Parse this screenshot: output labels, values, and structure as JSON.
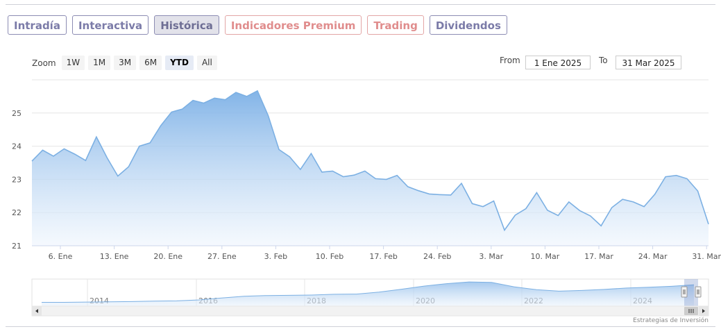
{
  "tabs": [
    {
      "label": "Intradía",
      "kind": "normal"
    },
    {
      "label": "Interactiva",
      "kind": "normal"
    },
    {
      "label": "Histórica",
      "kind": "active"
    },
    {
      "label": "Indicadores Premium",
      "kind": "premium"
    },
    {
      "label": "Trading",
      "kind": "premium"
    },
    {
      "label": "Dividendos",
      "kind": "normal"
    }
  ],
  "zoom": {
    "label": "Zoom",
    "buttons": [
      "1W",
      "1M",
      "3M",
      "6M",
      "YTD",
      "All"
    ],
    "selected": "YTD"
  },
  "range": {
    "from_label": "From",
    "from_value": "1 Ene 2025",
    "to_label": "To",
    "to_value": "31 Mar 2025"
  },
  "credit": "Estrategias de Inversión",
  "colors": {
    "line": "#7cb0e3",
    "fill_top": "#7cb0e6",
    "fill_bottom": "#eef5fd",
    "nav_fill": "#9cc3ec"
  },
  "chart_data": {
    "type": "area",
    "ylim": [
      21,
      26
    ],
    "yticks": [
      21,
      22,
      23,
      24,
      25
    ],
    "xlim": [
      "2025-01-01",
      "2025-03-31"
    ],
    "xticks": [
      {
        "date": "2025-01-06",
        "label": "6. Ene"
      },
      {
        "date": "2025-01-13",
        "label": "13. Ene"
      },
      {
        "date": "2025-01-20",
        "label": "20. Ene"
      },
      {
        "date": "2025-01-27",
        "label": "27. Ene"
      },
      {
        "date": "2025-02-03",
        "label": "3. Feb"
      },
      {
        "date": "2025-02-10",
        "label": "10. Feb"
      },
      {
        "date": "2025-02-17",
        "label": "17. Feb"
      },
      {
        "date": "2025-02-24",
        "label": "24. Feb"
      },
      {
        "date": "2025-03-03",
        "label": "3. Mar"
      },
      {
        "date": "2025-03-10",
        "label": "10. Mar"
      },
      {
        "date": "2025-03-17",
        "label": "17. Mar"
      },
      {
        "date": "2025-03-24",
        "label": "24. Mar"
      },
      {
        "date": "2025-03-31",
        "label": "31. Mar"
      }
    ],
    "points": [
      [
        "2025-01-01",
        23.55
      ],
      [
        "2025-01-02",
        23.88
      ],
      [
        "2025-01-03",
        23.7
      ],
      [
        "2025-01-04",
        23.92
      ],
      [
        "2025-01-05",
        23.76
      ],
      [
        "2025-01-06",
        23.57
      ],
      [
        "2025-01-07",
        24.28
      ],
      [
        "2025-01-08",
        23.65
      ],
      [
        "2025-01-09",
        23.1
      ],
      [
        "2025-01-10",
        23.38
      ],
      [
        "2025-01-11",
        24.0
      ],
      [
        "2025-01-12",
        24.1
      ],
      [
        "2025-01-13",
        24.62
      ],
      [
        "2025-01-14",
        25.03
      ],
      [
        "2025-01-15",
        25.12
      ],
      [
        "2025-01-16",
        25.38
      ],
      [
        "2025-01-17",
        25.3
      ],
      [
        "2025-01-18",
        25.45
      ],
      [
        "2025-01-19",
        25.4
      ],
      [
        "2025-01-20",
        25.62
      ],
      [
        "2025-01-21",
        25.5
      ],
      [
        "2025-01-22",
        25.67
      ],
      [
        "2025-01-23",
        24.92
      ],
      [
        "2025-01-24",
        23.9
      ],
      [
        "2025-01-25",
        23.68
      ],
      [
        "2025-01-26",
        23.3
      ],
      [
        "2025-01-27",
        23.78
      ],
      [
        "2025-01-28",
        23.22
      ],
      [
        "2025-01-29",
        23.25
      ],
      [
        "2025-01-30",
        23.08
      ],
      [
        "2025-01-31",
        23.13
      ],
      [
        "2025-02-01",
        23.25
      ],
      [
        "2025-02-02",
        23.02
      ],
      [
        "2025-02-03",
        23.0
      ],
      [
        "2025-02-04",
        23.12
      ],
      [
        "2025-02-05",
        22.78
      ],
      [
        "2025-02-06",
        22.66
      ],
      [
        "2025-02-07",
        22.56
      ],
      [
        "2025-02-08",
        22.54
      ],
      [
        "2025-02-09",
        22.53
      ],
      [
        "2025-02-10",
        22.88
      ],
      [
        "2025-02-11",
        22.27
      ],
      [
        "2025-02-12",
        22.18
      ],
      [
        "2025-02-13",
        22.35
      ],
      [
        "2025-02-14",
        21.47
      ],
      [
        "2025-02-15",
        21.92
      ],
      [
        "2025-02-16",
        22.12
      ],
      [
        "2025-02-17",
        22.6
      ],
      [
        "2025-02-18",
        22.07
      ],
      [
        "2025-02-19",
        21.91
      ],
      [
        "2025-02-20",
        22.32
      ],
      [
        "2025-02-21",
        22.06
      ],
      [
        "2025-02-22",
        21.9
      ],
      [
        "2025-02-23",
        21.6
      ],
      [
        "2025-02-24",
        22.15
      ],
      [
        "2025-02-25",
        22.4
      ],
      [
        "2025-02-26",
        22.32
      ],
      [
        "2025-02-27",
        22.18
      ],
      [
        "2025-02-28",
        22.55
      ],
      [
        "2025-03-01",
        23.08
      ],
      [
        "2025-03-02",
        23.12
      ],
      [
        "2025-03-03",
        23.02
      ],
      [
        "2025-03-04",
        22.65
      ],
      [
        "2025-03-05",
        21.65
      ]
    ]
  },
  "navigator": {
    "year_labels": [
      "2014",
      "2016",
      "2018",
      "2020",
      "2022",
      "2024"
    ],
    "series": [
      18,
      18,
      18.1,
      18.2,
      18.3,
      18.5,
      18.6,
      19.0,
      19.8,
      20.5,
      20.8,
      20.9,
      21.0,
      21.3,
      21.4,
      22.2,
      23.4,
      24.7,
      25.7,
      26.4,
      26.2,
      24.4,
      23.2,
      22.6,
      22.9,
      23.3,
      23.9,
      24.2,
      24.6,
      25.2
    ]
  }
}
